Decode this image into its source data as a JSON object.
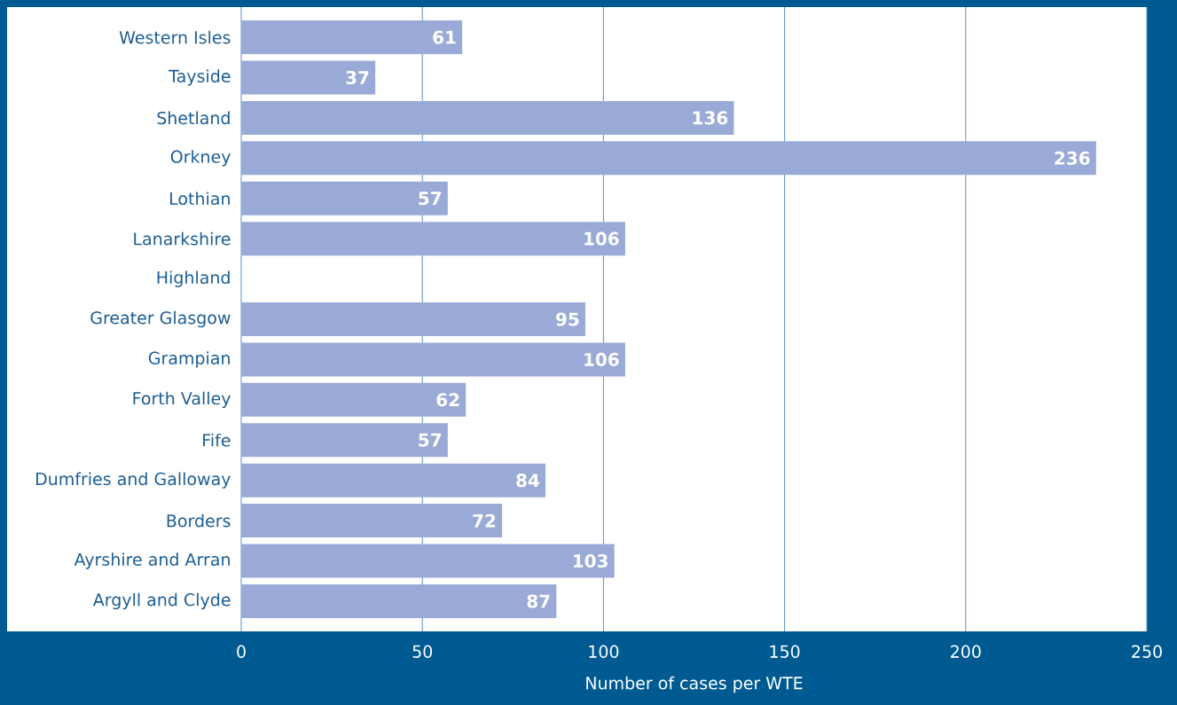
{
  "chart_data": {
    "type": "bar",
    "orientation": "horizontal",
    "xlabel": "Number of cases per WTE",
    "categories": [
      "Western Isles",
      "Tayside",
      "Shetland",
      "Orkney",
      "Lothian",
      "Lanarkshire",
      "Highland",
      "Greater Glasgow",
      "Grampian",
      "Forth Valley",
      "Fife",
      "Dumfries and Galloway",
      "Borders",
      "Ayrshire and Arran",
      "Argyll and Clyde"
    ],
    "values": [
      61,
      37,
      136,
      236,
      57,
      106,
      null,
      95,
      106,
      62,
      57,
      84,
      72,
      103,
      87
    ],
    "color": "#9aaad6",
    "xlim": [
      0,
      250
    ],
    "xticks": [
      0,
      50,
      100,
      150,
      200,
      250
    ],
    "grid": "x",
    "data_labels": true
  }
}
